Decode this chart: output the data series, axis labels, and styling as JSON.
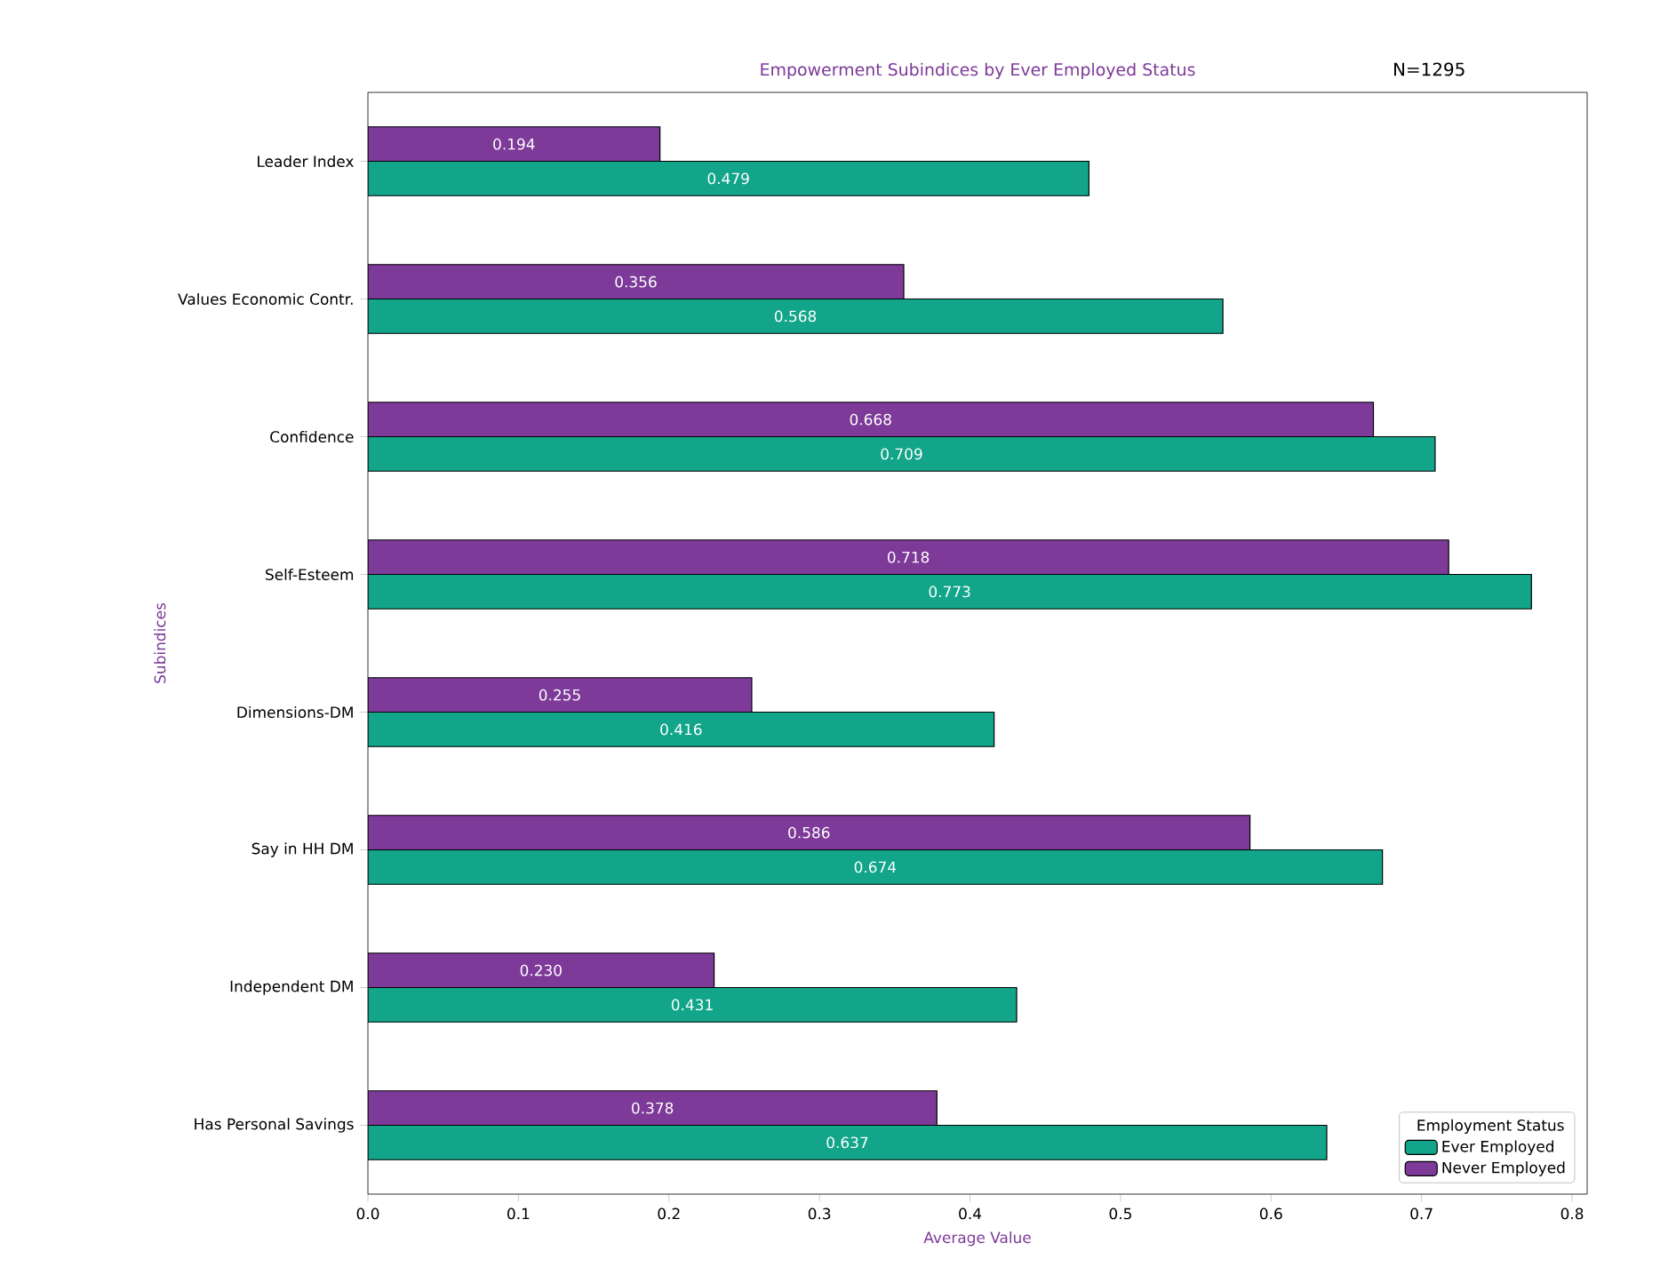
{
  "chart_data": {
    "type": "bar",
    "orientation": "horizontal",
    "title": "Empowerment Subindices by Ever Employed Status",
    "xlabel": "Average Value",
    "ylabel": "Subindices",
    "legend_title": "Employment Status",
    "legend": "bottom right",
    "annotations": [
      "N=1295"
    ],
    "categories": [
      "Leader Index",
      "Values Economic Contr.",
      "Confidence",
      "Self-Esteem",
      "Dimensions-DM",
      "Say in HH DM",
      "Independent DM",
      "Has Personal Savings"
    ],
    "series": [
      {
        "name": "Ever Employed",
        "color": "#12a58a",
        "values": [
          0.479,
          0.568,
          0.709,
          0.773,
          0.416,
          0.674,
          0.431,
          0.637
        ],
        "value_labels": [
          "0.479",
          "0.568",
          "0.709",
          "0.773",
          "0.416",
          "0.674",
          "0.431",
          "0.637"
        ]
      },
      {
        "name": "Never Employed",
        "color": "#7d3a98",
        "values": [
          0.194,
          0.356,
          0.668,
          0.718,
          0.255,
          0.586,
          0.23,
          0.378
        ],
        "value_labels": [
          "0.194",
          "0.356",
          "0.668",
          "0.718",
          "0.255",
          "0.586",
          "0.230",
          "0.378"
        ]
      }
    ],
    "xlim": [
      0,
      0.81
    ],
    "xticks": [
      {
        "value": 0,
        "label": "0.0"
      },
      {
        "value": 0.1,
        "label": "0.1"
      },
      {
        "value": 0.2,
        "label": "0.2"
      },
      {
        "value": 0.3,
        "label": "0.3"
      },
      {
        "value": 0.4,
        "label": "0.4"
      },
      {
        "value": 0.5,
        "label": "0.5"
      },
      {
        "value": 0.6,
        "label": "0.6"
      },
      {
        "value": 0.7,
        "label": "0.7"
      },
      {
        "value": 0.8,
        "label": "0.8"
      }
    ]
  }
}
